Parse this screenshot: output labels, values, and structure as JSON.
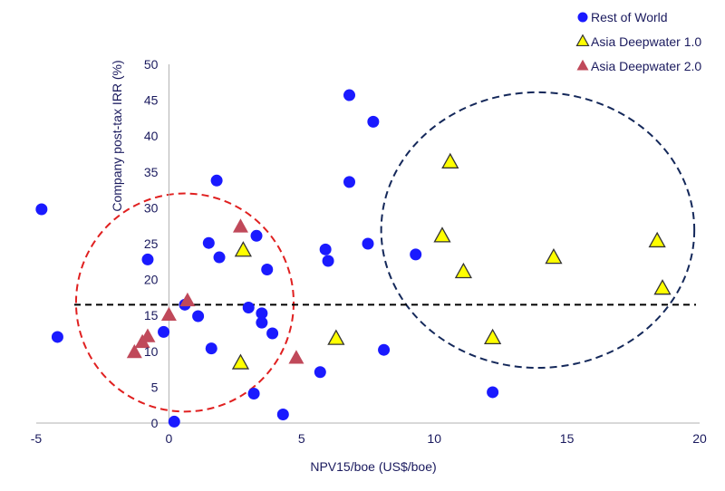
{
  "chart_data": {
    "type": "scatter",
    "title": "",
    "xlabel": "NPV15/boe (US$/boe)",
    "ylabel": "Company post-tax IRR (%)",
    "xlim": [
      -5,
      20
    ],
    "ylim": [
      0,
      50
    ],
    "x_ticks": [
      "-5",
      "0",
      "5",
      "10",
      "15",
      "20"
    ],
    "y_ticks": [
      "0",
      "5",
      "10",
      "15",
      "20",
      "25",
      "30",
      "35",
      "40",
      "45",
      "50"
    ],
    "legend_position": "top-right",
    "reference_line": {
      "y": 16.5,
      "style": "dashed",
      "color": "#000000"
    },
    "ellipses": [
      {
        "center": [
          0.6,
          16.8
        ],
        "radii": [
          4.1,
          15.2
        ],
        "color": "#e02020",
        "style": "dashed"
      },
      {
        "center": [
          13.9,
          26.9
        ],
        "radii": [
          5.9,
          19.2
        ],
        "color": "#14285a",
        "style": "dashed"
      }
    ],
    "series": [
      {
        "name": "Rest of World",
        "marker": "circle",
        "color": "#1a1aff",
        "points": [
          [
            -4.8,
            29.8
          ],
          [
            -4.2,
            12.0
          ],
          [
            -0.8,
            22.8
          ],
          [
            -0.2,
            12.7
          ],
          [
            0.2,
            0.2
          ],
          [
            0.6,
            16.5
          ],
          [
            1.1,
            14.9
          ],
          [
            1.5,
            25.1
          ],
          [
            1.6,
            10.4
          ],
          [
            1.8,
            33.8
          ],
          [
            1.9,
            23.1
          ],
          [
            3.0,
            16.1
          ],
          [
            3.2,
            4.1
          ],
          [
            3.3,
            26.1
          ],
          [
            3.5,
            14.0
          ],
          [
            3.5,
            15.3
          ],
          [
            3.7,
            21.4
          ],
          [
            3.9,
            12.5
          ],
          [
            4.3,
            1.2
          ],
          [
            5.7,
            7.1
          ],
          [
            5.9,
            24.2
          ],
          [
            6.0,
            22.6
          ],
          [
            6.8,
            45.7
          ],
          [
            6.8,
            33.6
          ],
          [
            7.5,
            25.0
          ],
          [
            7.7,
            42.0
          ],
          [
            8.1,
            10.2
          ],
          [
            9.3,
            23.5
          ],
          [
            12.2,
            4.3
          ]
        ]
      },
      {
        "name": "Asia Deepwater 1.0",
        "marker": "triangle",
        "color": "#ffff00",
        "points": [
          [
            2.7,
            8.3
          ],
          [
            2.8,
            24.0
          ],
          [
            6.3,
            11.7
          ],
          [
            10.3,
            26.0
          ],
          [
            10.6,
            36.3
          ],
          [
            11.1,
            21.0
          ],
          [
            12.2,
            11.8
          ],
          [
            14.5,
            23.0
          ],
          [
            18.4,
            25.3
          ],
          [
            18.6,
            18.7
          ]
        ]
      },
      {
        "name": "Asia Deepwater 2.0",
        "marker": "triangle",
        "color": "#c0495a",
        "points": [
          [
            -1.3,
            9.8
          ],
          [
            -1.0,
            11.2
          ],
          [
            -0.8,
            12.0
          ],
          [
            0.0,
            15.0
          ],
          [
            0.7,
            17.0
          ],
          [
            2.7,
            27.3
          ],
          [
            4.8,
            9.0
          ]
        ]
      }
    ]
  }
}
